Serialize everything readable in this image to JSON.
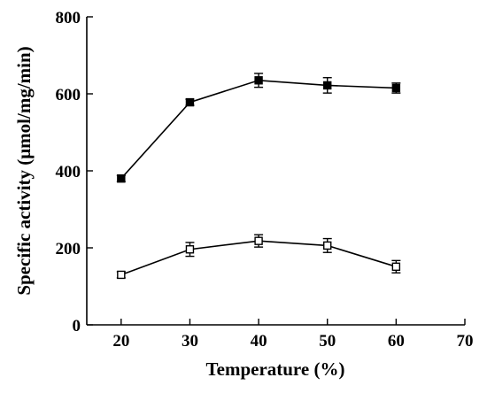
{
  "chart_data": {
    "type": "line",
    "xlabel": "Temperature (%)",
    "ylabel": "Specific activity (μmol/mg/min)",
    "xlim": [
      15,
      70
    ],
    "ylim": [
      0,
      800
    ],
    "xticks": [
      20,
      30,
      40,
      50,
      60,
      70
    ],
    "yticks": [
      0,
      200,
      400,
      600,
      800
    ],
    "grid": false,
    "x": [
      20,
      30,
      40,
      50,
      60
    ],
    "series": [
      {
        "marker": "filled-square",
        "color": "#000000",
        "values": [
          380,
          578,
          635,
          622,
          615
        ],
        "errors": [
          8,
          8,
          18,
          20,
          13
        ]
      },
      {
        "marker": "open-square",
        "color": "#000000",
        "values": [
          130,
          196,
          218,
          206,
          151
        ],
        "errors": [
          8,
          18,
          16,
          18,
          16
        ]
      }
    ]
  }
}
